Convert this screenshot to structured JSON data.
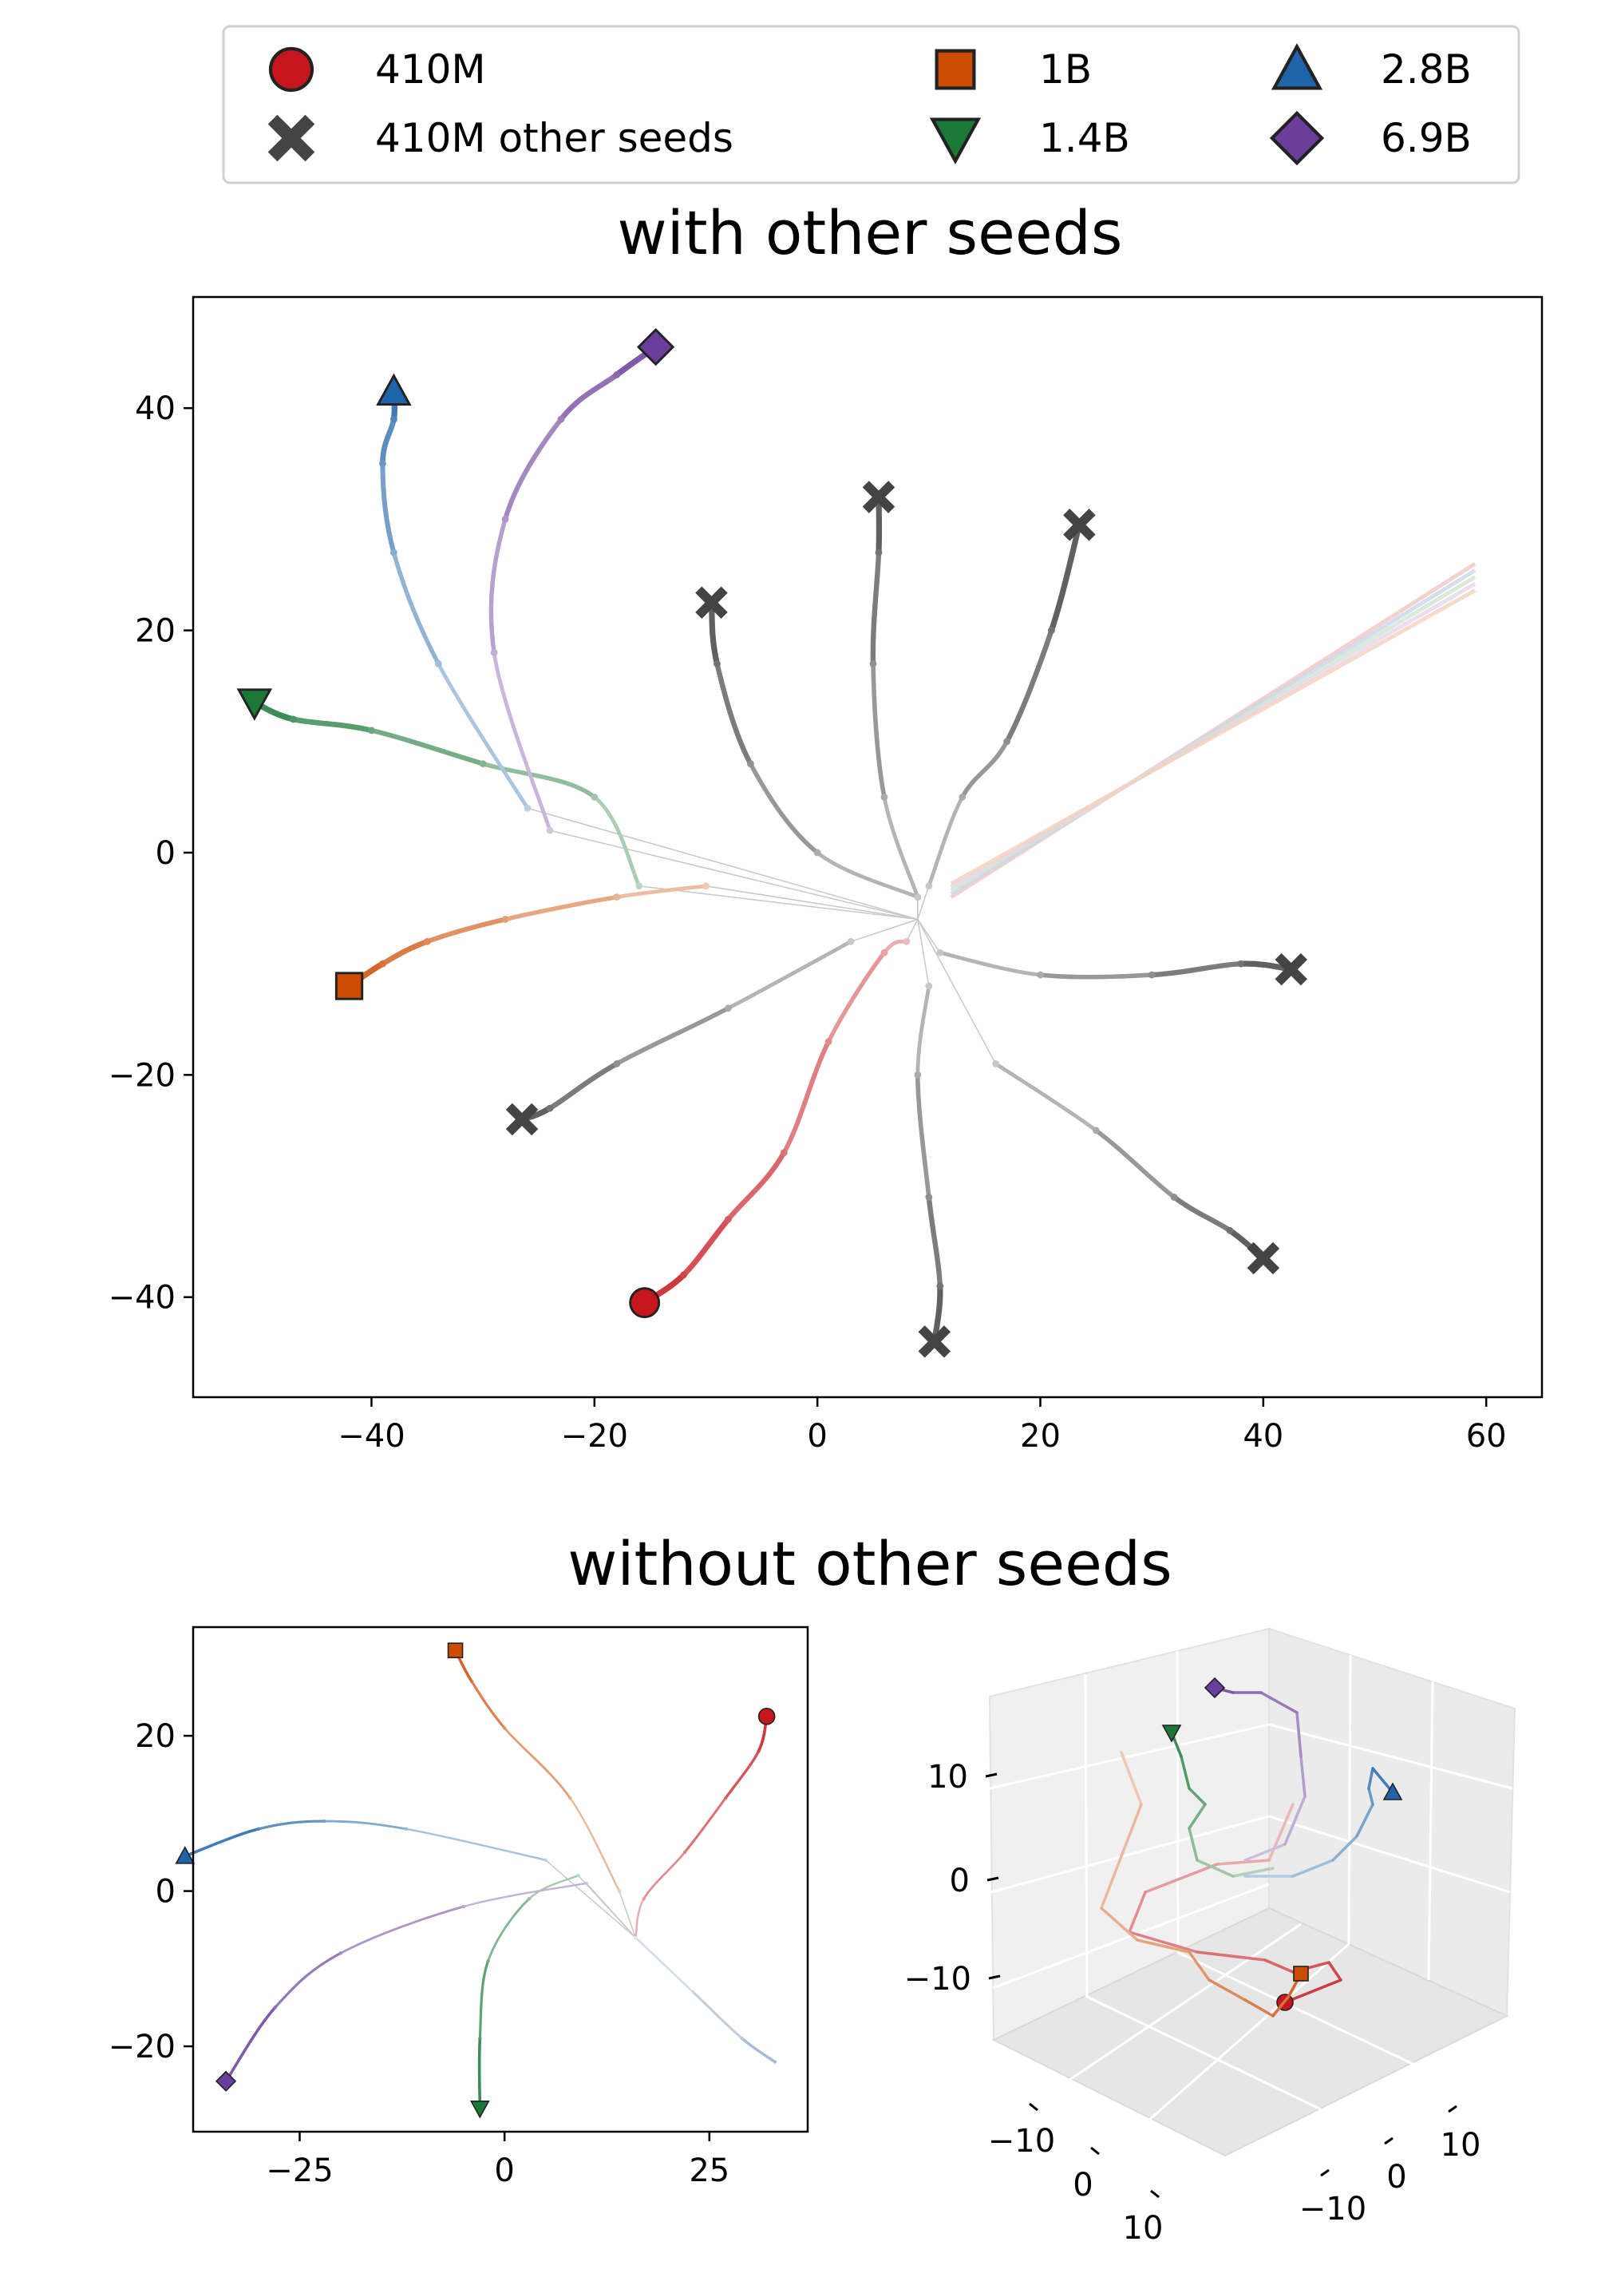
{
  "legend": {
    "items": [
      {
        "label": "410M",
        "marker": "circle",
        "color": "#c5161d"
      },
      {
        "label": "410M other seeds",
        "marker": "x",
        "color": "#444444"
      },
      {
        "label": "1B",
        "marker": "square",
        "color": "#cc4c02"
      },
      {
        "label": "1.4B",
        "marker": "triangle-down",
        "color": "#1b7837"
      },
      {
        "label": "2.8B",
        "marker": "triangle-up",
        "color": "#1f63a8"
      },
      {
        "label": "6.9B",
        "marker": "diamond",
        "color": "#6a3d9a"
      }
    ]
  },
  "chart_data": [
    {
      "type": "scatter",
      "title": "with other seeds",
      "xlim": [
        -56,
        65
      ],
      "ylim": [
        -49,
        50
      ],
      "xticks": [
        -40,
        -20,
        0,
        20,
        40,
        60
      ],
      "yticks": [
        -40,
        -20,
        0,
        20,
        40
      ],
      "xtick_labels": [
        "−40",
        "−20",
        "0",
        "20",
        "40",
        "60"
      ],
      "ytick_labels": [
        "−40",
        "−20",
        "0",
        "20",
        "40"
      ],
      "series": [
        {
          "name": "410M",
          "color": "#c5161d",
          "end_marker": "circle",
          "points": [
            [
              8,
              -8
            ],
            [
              6,
              -9
            ],
            [
              1,
              -17
            ],
            [
              -3,
              -27
            ],
            [
              -8,
              -33
            ],
            [
              -12,
              -38
            ],
            [
              -15.5,
              -40.5
            ]
          ]
        },
        {
          "name": "1B",
          "color": "#cc4c02",
          "end_marker": "square",
          "points": [
            [
              -10,
              -3
            ],
            [
              -18,
              -4
            ],
            [
              -28,
              -6
            ],
            [
              -35,
              -8
            ],
            [
              -39,
              -10
            ],
            [
              -42,
              -12
            ]
          ]
        },
        {
          "name": "1.4B",
          "color": "#1b7837",
          "end_marker": "triangle-down",
          "points": [
            [
              -16,
              -3
            ],
            [
              -20,
              5
            ],
            [
              -30,
              8
            ],
            [
              -40,
              11
            ],
            [
              -47,
              12
            ],
            [
              -50.5,
              13.5
            ]
          ]
        },
        {
          "name": "2.8B",
          "color": "#1f63a8",
          "end_marker": "triangle-up",
          "points": [
            [
              -26,
              4
            ],
            [
              -34,
              17
            ],
            [
              -38,
              27
            ],
            [
              -39,
              35
            ],
            [
              -38,
              39
            ],
            [
              -38,
              41.5
            ]
          ]
        },
        {
          "name": "6.9B",
          "color": "#6a3d9a",
          "end_marker": "diamond",
          "points": [
            [
              -24,
              2
            ],
            [
              -29,
              18
            ],
            [
              -28,
              30
            ],
            [
              -23,
              39
            ],
            [
              -18,
              43
            ],
            [
              -14.5,
              45.5
            ]
          ]
        },
        {
          "name": "410M other seeds",
          "color": "#444444",
          "end_marker": "x",
          "points": [
            [
              9,
              -4
            ],
            [
              0,
              0
            ],
            [
              -6,
              8
            ],
            [
              -9,
              17
            ],
            [
              -9.5,
              22.5
            ]
          ]
        },
        {
          "name": "410M other seeds",
          "color": "#444444",
          "end_marker": "x",
          "points": [
            [
              9,
              -4
            ],
            [
              6,
              5
            ],
            [
              5,
              17
            ],
            [
              5.5,
              27
            ],
            [
              5.5,
              32
            ]
          ]
        },
        {
          "name": "410M other seeds",
          "color": "#444444",
          "end_marker": "x",
          "points": [
            [
              10,
              -3
            ],
            [
              13,
              5
            ],
            [
              17,
              10
            ],
            [
              21,
              20
            ],
            [
              23.5,
              29.5
            ]
          ]
        },
        {
          "name": "410M other seeds",
          "color": "#444444",
          "end_marker": "x",
          "points": [
            [
              11,
              -9
            ],
            [
              20,
              -11
            ],
            [
              30,
              -11
            ],
            [
              38,
              -10
            ],
            [
              42.5,
              -10.5
            ]
          ]
        },
        {
          "name": "410M other seeds",
          "color": "#444444",
          "end_marker": "x",
          "points": [
            [
              16,
              -19
            ],
            [
              25,
              -25
            ],
            [
              32,
              -31
            ],
            [
              37,
              -34
            ],
            [
              40,
              -36.5
            ]
          ]
        },
        {
          "name": "410M other seeds",
          "color": "#444444",
          "end_marker": "x",
          "points": [
            [
              10,
              -12
            ],
            [
              9,
              -20
            ],
            [
              10,
              -31
            ],
            [
              11,
              -39
            ],
            [
              10.5,
              -44
            ]
          ]
        },
        {
          "name": "410M other seeds",
          "color": "#444444",
          "end_marker": "x",
          "points": [
            [
              3,
              -8
            ],
            [
              -8,
              -14
            ],
            [
              -18,
              -19
            ],
            [
              -24,
              -23
            ],
            [
              -26.5,
              -24
            ]
          ]
        }
      ]
    },
    {
      "type": "scatter",
      "title": "without other seeds",
      "xlim": [
        -38,
        37
      ],
      "ylim": [
        -31,
        34
      ],
      "xticks": [
        -25,
        0,
        25
      ],
      "yticks": [
        -20,
        0,
        20
      ],
      "xtick_labels": [
        "−25",
        "0",
        "25"
      ],
      "ytick_labels": [
        "−20",
        "0",
        "20"
      ],
      "series": [
        {
          "name": "410M",
          "color": "#c5161d",
          "end_marker": "circle",
          "points": [
            [
              16,
              -6
            ],
            [
              17,
              -1
            ],
            [
              22,
              5
            ],
            [
              27,
              12
            ],
            [
              31,
              18
            ],
            [
              32,
              22.5
            ]
          ]
        },
        {
          "name": "1B",
          "color": "#cc4c02",
          "end_marker": "square",
          "points": [
            [
              14,
              0
            ],
            [
              8,
              12
            ],
            [
              0,
              21
            ],
            [
              -4,
              27
            ],
            [
              -6,
              31
            ]
          ]
        },
        {
          "name": "1.4B",
          "color": "#1b7837",
          "end_marker": "triangle-down",
          "points": [
            [
              9,
              2
            ],
            [
              3,
              -1
            ],
            [
              -2,
              -9
            ],
            [
              -3,
              -19
            ],
            [
              -3,
              -28
            ]
          ]
        },
        {
          "name": "2.8B",
          "color": "#1f63a8",
          "end_marker": "triangle-up",
          "points": [
            [
              5,
              4
            ],
            [
              -12,
              8
            ],
            [
              -22,
              9
            ],
            [
              -30,
              8
            ],
            [
              -39,
              4.5
            ]
          ]
        },
        {
          "name": "6.9B",
          "color": "#6a3d9a",
          "end_marker": "diamond",
          "points": [
            [
              10,
              1
            ],
            [
              -5,
              -2
            ],
            [
              -20,
              -8
            ],
            [
              -28,
              -15
            ],
            [
              -34,
              -24.5
            ]
          ]
        },
        {
          "name": "unlabeled",
          "color": "#9ab0d0",
          "end_marker": "none",
          "points": [
            [
              16,
              -6
            ],
            [
              23,
              -13
            ],
            [
              29,
              -19
            ],
            [
              33,
              -22
            ]
          ]
        }
      ]
    },
    {
      "type": "scatter",
      "title": "",
      "axes": "3d",
      "ztick_labels": [
        "10",
        "0",
        "−10"
      ],
      "xtick_labels": [
        "−10",
        "0",
        "10"
      ],
      "ytick_labels": [
        "10",
        "0",
        "−10"
      ],
      "series": [
        {
          "name": "410M",
          "color": "#c5161d",
          "end_marker": "circle"
        },
        {
          "name": "1B",
          "color": "#cc4c02",
          "end_marker": "square"
        },
        {
          "name": "1.4B",
          "color": "#1b7837",
          "end_marker": "triangle-down"
        },
        {
          "name": "2.8B",
          "color": "#1f63a8",
          "end_marker": "triangle-up"
        },
        {
          "name": "6.9B",
          "color": "#6a3d9a",
          "end_marker": "diamond"
        }
      ]
    }
  ]
}
